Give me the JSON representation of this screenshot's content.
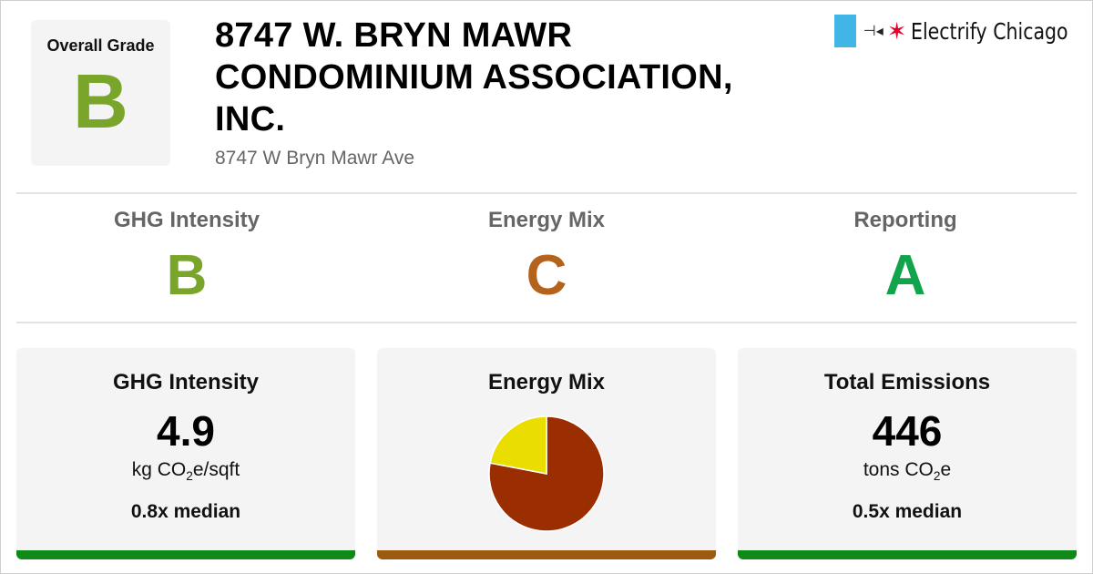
{
  "header": {
    "overall_label": "Overall Grade",
    "overall_grade": "B",
    "title": "8747 W. BRYN MAWR CONDOMINIUM ASSOCIATION, INC.",
    "address": "8747 W Bryn Mawr Ave",
    "brand_name": "Electrify Chicago"
  },
  "grades": [
    {
      "label": "GHG Intensity",
      "grade": "B",
      "color": "#7aa52b"
    },
    {
      "label": "Energy Mix",
      "grade": "C",
      "color": "#b5621c"
    },
    {
      "label": "Reporting",
      "grade": "A",
      "color": "#12a44d"
    }
  ],
  "cards": {
    "ghg": {
      "title": "GHG Intensity",
      "value": "4.9",
      "unit_main": "kg CO",
      "unit_sub": "2",
      "unit_rest": "e/sqft",
      "median": "0.8x median",
      "bar_color": "#0f8a18"
    },
    "mix": {
      "title": "Energy Mix",
      "bar_color": "#9b5a0e"
    },
    "total": {
      "title": "Total Emissions",
      "value": "446",
      "unit_main": "tons CO",
      "unit_sub": "2",
      "unit_rest": "e",
      "median": "0.5x median",
      "bar_color": "#0f8a18"
    }
  },
  "energy_mix": {
    "slices": [
      {
        "fraction": 0.78,
        "color": "#9a2e00"
      },
      {
        "fraction": 0.22,
        "color": "#eadd00"
      }
    ]
  },
  "colors": {
    "overall_grade": "#7aa52b",
    "brand_flag": "#41b6e6",
    "brand_star": "#e4002b"
  }
}
